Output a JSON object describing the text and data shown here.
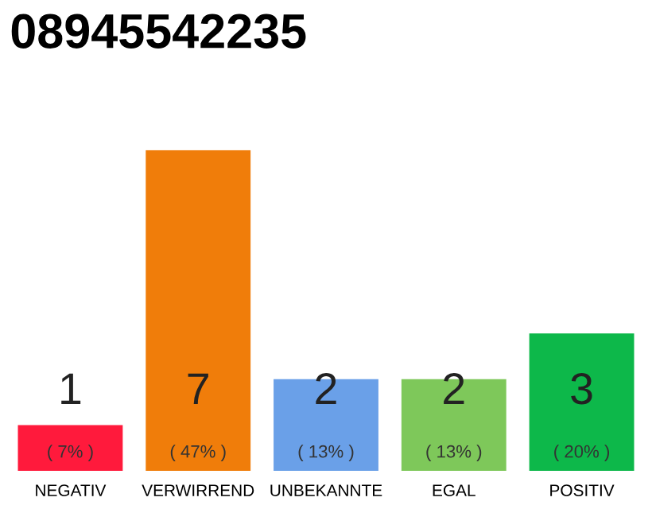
{
  "chart_data": {
    "type": "bar",
    "title": "08945542235",
    "categories": [
      "NEGATIV",
      "VERWIRREND",
      "UNBEKANNTE",
      "EGAL",
      "POSITIV"
    ],
    "values": [
      1,
      7,
      2,
      2,
      3
    ],
    "colors": [
      "#ff1a3c",
      "#f07d0a",
      "#6aa0e8",
      "#7ec85a",
      "#0db84a"
    ],
    "value_labels": [
      "1\n( 7% )",
      "7\n( 47% )",
      "2\n( 13% )",
      "2\n( 13% )",
      "3\n( 20% )"
    ],
    "grid": false,
    "legend": false
  }
}
